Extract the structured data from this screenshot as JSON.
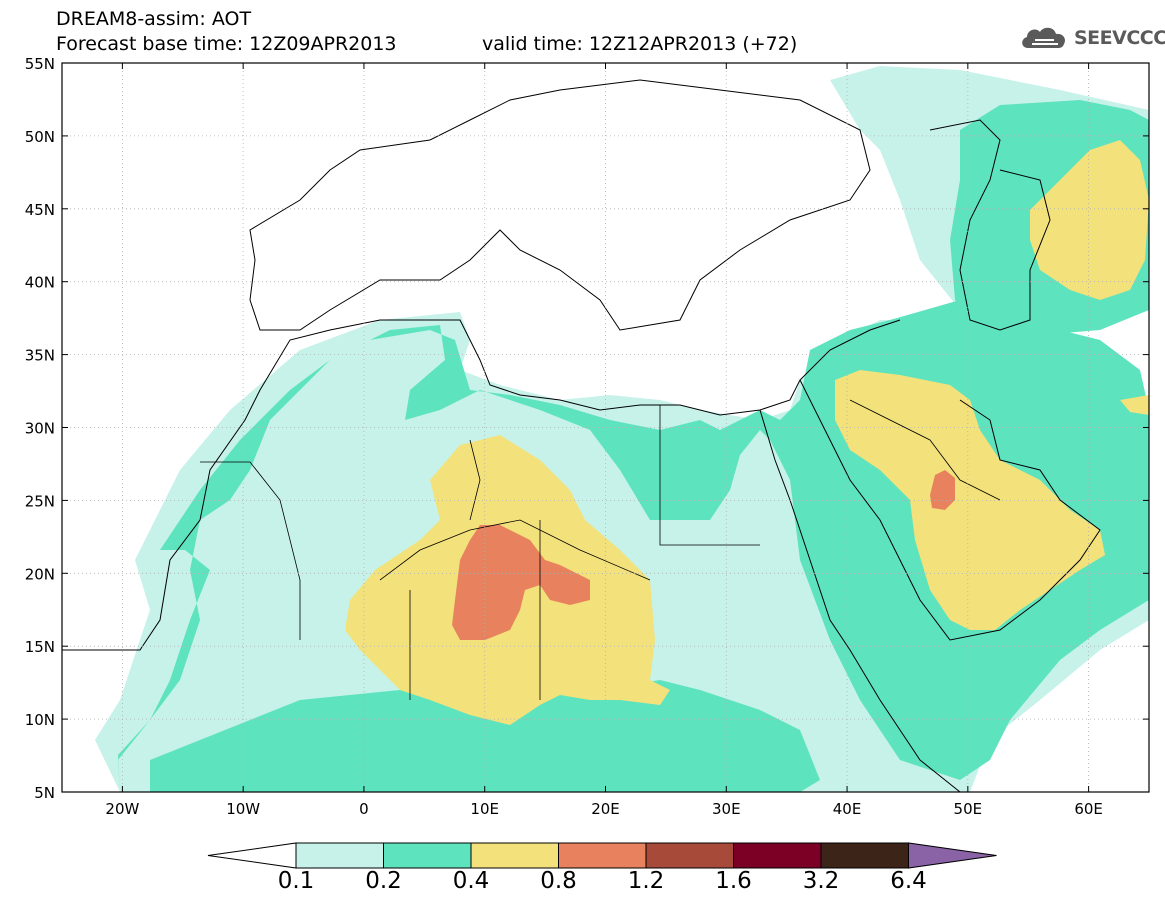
{
  "title": {
    "line1": "DREAM8-assim: AOT",
    "base_time": "Forecast base time: 12Z09APR2013",
    "valid_time": "valid time: 12Z12APR2013 (+72)"
  },
  "logo": {
    "text": "SEEVCCC",
    "icon": "cloud-icon",
    "color": "#555555"
  },
  "map": {
    "lon_range": [
      -25,
      65
    ],
    "lat_range": [
      5,
      55
    ],
    "lat_ticks": [
      {
        "value": 55,
        "label": "55N"
      },
      {
        "value": 50,
        "label": "50N"
      },
      {
        "value": 45,
        "label": "45N"
      },
      {
        "value": 40,
        "label": "40N"
      },
      {
        "value": 35,
        "label": "35N"
      },
      {
        "value": 30,
        "label": "30N"
      },
      {
        "value": 25,
        "label": "25N"
      },
      {
        "value": 20,
        "label": "20N"
      },
      {
        "value": 15,
        "label": "15N"
      },
      {
        "value": 10,
        "label": "10N"
      },
      {
        "value": 5,
        "label": "5N"
      }
    ],
    "lon_ticks": [
      {
        "value": -20,
        "label": "20W"
      },
      {
        "value": -10,
        "label": "10W"
      },
      {
        "value": 0,
        "label": "0"
      },
      {
        "value": 10,
        "label": "10E"
      },
      {
        "value": 20,
        "label": "20E"
      },
      {
        "value": 30,
        "label": "30E"
      },
      {
        "value": 40,
        "label": "40E"
      },
      {
        "value": 50,
        "label": "50E"
      },
      {
        "value": 60,
        "label": "60E"
      }
    ],
    "grid": true
  },
  "colorbar": {
    "labels": [
      "0.1",
      "0.2",
      "0.4",
      "0.8",
      "1.2",
      "1.6",
      "3.2",
      "6.4"
    ],
    "under_color": "#ffffff",
    "colors": [
      "#c6f2ea",
      "#5ee3bf",
      "#f3e27b",
      "#e8825e",
      "#a84a3a",
      "#7c0026",
      "#3c2418"
    ],
    "over_color": "#8a62a6"
  }
}
